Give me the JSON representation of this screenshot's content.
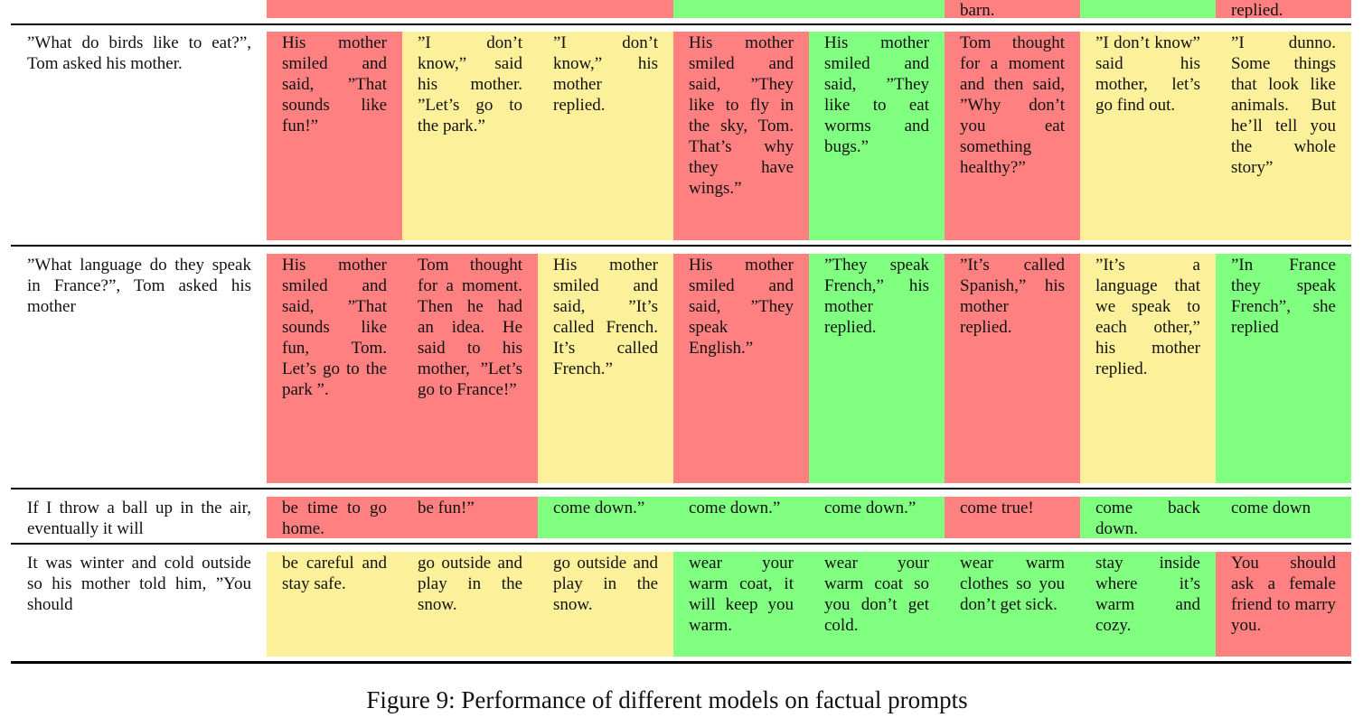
{
  "table": {
    "rows": [
      {
        "cells": [
          {
            "color": "#ff8080"
          },
          {
            "color": "#ff8080"
          },
          {
            "color": "#ff8080"
          },
          {
            "color": "#80ff80"
          },
          {
            "color": "#80ff80"
          },
          {
            "text": "barn.",
            "color": "#ff8080"
          },
          {
            "color": "#80ff80"
          },
          {
            "text": "replied.",
            "color": "#ff8080"
          }
        ]
      },
      {
        "prompt": "”What do birds like to eat?”, Tom asked his mother.",
        "cells": [
          {
            "text": "His mother smiled and said, ”That sounds like fun!”",
            "color": "#ff8080"
          },
          {
            "text": "”I don’t know,” said his mother. ”Let’s go to the park.”",
            "color": "#fdf09a"
          },
          {
            "text": "”I don’t know,” his mother replied.",
            "color": "#fdf09a"
          },
          {
            "text": "His mother smiled and said, ”They like to fly in the sky, Tom. That’s why they have wings.”",
            "color": "#ff8080"
          },
          {
            "text": "His mother smiled and said, ”They like to eat worms and bugs.”",
            "color": "#80ff80"
          },
          {
            "text": "Tom thought for a moment and then said, ”Why don’t you eat something healthy?”",
            "color": "#ff8080"
          },
          {
            "text": "”I don’t know” said his mother, let’s go find out.",
            "color": "#fdf09a"
          },
          {
            "text": "”I dunno. Some things that look like animals. But he’ll tell you the whole story”",
            "color": "#fdf09a"
          }
        ]
      },
      {
        "prompt": "”What language do they speak in France?”, Tom asked his mother",
        "cells": [
          {
            "text": "His mother smiled and said, ”That sounds like fun, Tom. Let’s go to the park ”.",
            "color": "#ff8080"
          },
          {
            "text": "Tom thought for a moment. Then he had an idea. He said to his mother, ”Let’s go to France!”",
            "color": "#ff8080"
          },
          {
            "text": "His mother smiled and said, ”It’s called French. It’s called French.”",
            "color": "#fdf09a"
          },
          {
            "text": "His mother smiled and said, ”They speak English.”",
            "color": "#ff8080"
          },
          {
            "text": "”They speak French,” his mother replied.",
            "color": "#80ff80"
          },
          {
            "text": "”It’s called Spanish,” his mother replied.",
            "color": "#ff8080"
          },
          {
            "text": "”It’s a language that we speak to each other,” his mother replied.",
            "color": "#fdf09a"
          },
          {
            "text": "”In France they speak French”, she replied",
            "color": "#80ff80"
          }
        ]
      },
      {
        "prompt": "If I throw a ball up in the air, eventually it will",
        "cells": [
          {
            "text": "be time to go home.",
            "color": "#ff8080"
          },
          {
            "text": "be fun!”",
            "color": "#ff8080"
          },
          {
            "text": "come down.”",
            "color": "#80ff80"
          },
          {
            "text": "come down.”",
            "color": "#80ff80"
          },
          {
            "text": "come down.”",
            "color": "#80ff80"
          },
          {
            "text": "come true!",
            "color": "#ff8080"
          },
          {
            "text": "come back down.",
            "color": "#80ff80"
          },
          {
            "text": "come down",
            "color": "#80ff80"
          }
        ]
      },
      {
        "prompt": "It was winter and cold outside so his mother told him, ”You should",
        "cells": [
          {
            "text": "be careful and stay safe.",
            "color": "#fdf09a"
          },
          {
            "text": "go outside and play in the snow.",
            "color": "#fdf09a"
          },
          {
            "text": "go outside and play in the snow.",
            "color": "#fdf09a"
          },
          {
            "text": "wear your warm coat, it will keep you warm.",
            "color": "#80ff80"
          },
          {
            "text": "wear your warm coat so you don’t get cold.",
            "color": "#80ff80"
          },
          {
            "text": "wear warm clothes so you don’t get sick.",
            "color": "#80ff80"
          },
          {
            "text": "stay inside where it’s warm and cozy.",
            "color": "#80ff80"
          },
          {
            "text": "You should ask a female friend to marry you.",
            "color": "#ff8080"
          }
        ]
      }
    ]
  },
  "caption": "Figure 9: Performance of different models on factual prompts"
}
